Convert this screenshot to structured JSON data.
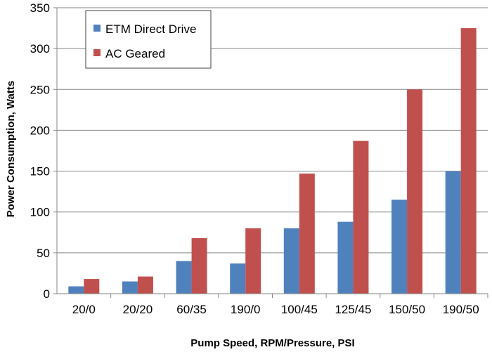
{
  "chart_data": {
    "type": "bar",
    "title": "",
    "xlabel": "Pump Speed, RPM/Pressure, PSI",
    "ylabel": "Power Consumption, Watts",
    "ylim": [
      0,
      350
    ],
    "yticks": [
      0,
      50,
      100,
      150,
      200,
      250,
      300,
      350
    ],
    "grid": true,
    "legend_position": "top-left",
    "categories": [
      "20/0",
      "20/20",
      "60/35",
      "190/0",
      "100/45",
      "125/45",
      "150/50",
      "190/50"
    ],
    "series": [
      {
        "name": "ETM Direct Drive",
        "color": "#4f81bd",
        "values": [
          9,
          15,
          40,
          37,
          80,
          88,
          115,
          150
        ]
      },
      {
        "name": "AC Geared",
        "color": "#c0504d",
        "values": [
          18,
          21,
          68,
          80,
          147,
          187,
          250,
          325
        ]
      }
    ]
  }
}
